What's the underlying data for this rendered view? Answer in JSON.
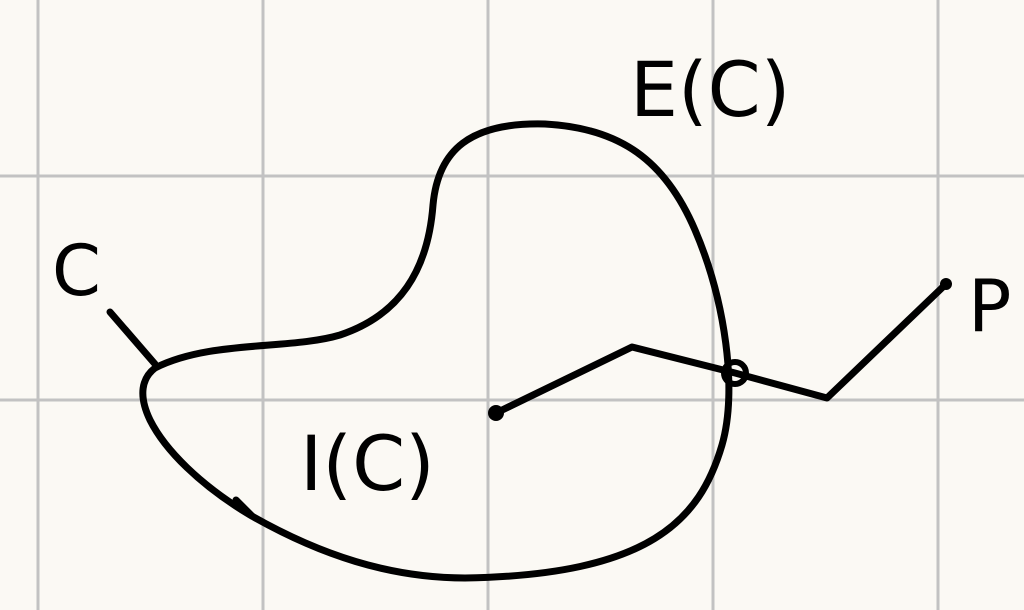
{
  "labels": {
    "curve": "C",
    "exterior": "E(C)",
    "interior": "I(C)",
    "point": "P"
  },
  "colors": {
    "background": "#fbf9f4",
    "grid": "#c2c2c2",
    "ink": "#000000"
  }
}
